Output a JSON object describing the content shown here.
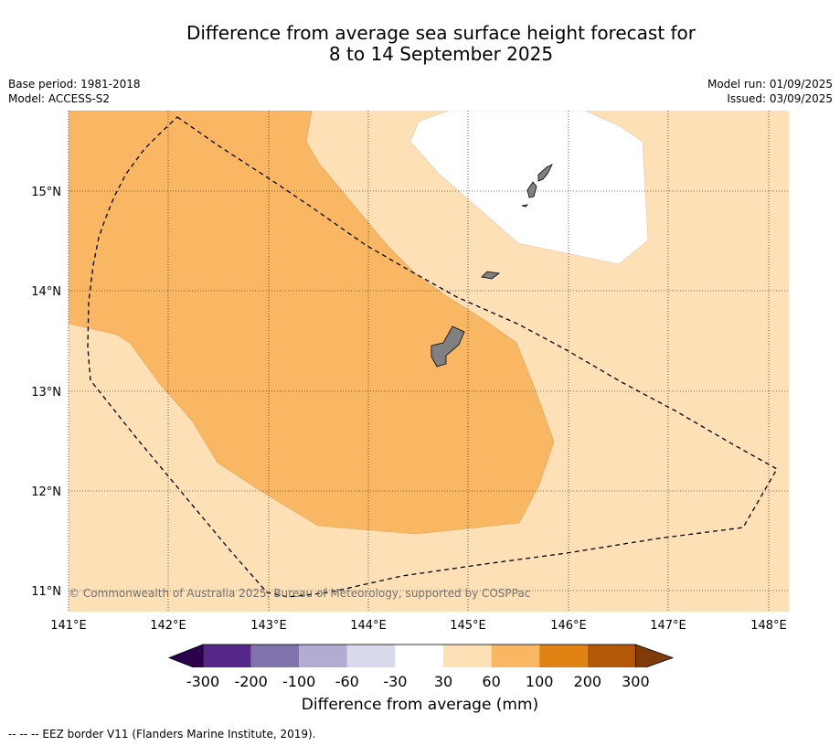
{
  "title": {
    "line1": "Difference from average sea surface height forecast for",
    "line2": "8 to 14 September 2025"
  },
  "meta": {
    "base_period": "Base period: 1981-2018",
    "model": "Model: ACCESS-S2",
    "model_run": "Model run: 01/09/2025",
    "issued": "Issued: 03/09/2025"
  },
  "map": {
    "lat_labels": [
      "15°N",
      "14°N",
      "13°N",
      "12°N",
      "11°N"
    ],
    "lon_labels": [
      "141°E",
      "142°E",
      "143°E",
      "144°E",
      "145°E",
      "146°E",
      "147°E",
      "148°E"
    ],
    "copyright": "© Commonwealth of Australia 2025, Bureau of Meteorology, supported by COSPPac",
    "colors": {
      "class_30_60": "#fde0b5",
      "class_60_100": "#fab763",
      "class_neg30_30": "#ffffff",
      "land": "#808080"
    }
  },
  "colorbar": {
    "title": "Difference from average (mm)",
    "labels": [
      "-300",
      "-200",
      "-100",
      "-60",
      "-30",
      "30",
      "60",
      "100",
      "200",
      "300"
    ],
    "colors": [
      "#2d004b",
      "#542788",
      "#8073ac",
      "#b2abd2",
      "#d8daeb",
      "#ffffff",
      "#fde0b5",
      "#fab763",
      "#e08214",
      "#b35806",
      "#7f3b08"
    ]
  },
  "footnote": "--  --  -- EEZ border V11 (Flanders Marine Institute, 2019)."
}
